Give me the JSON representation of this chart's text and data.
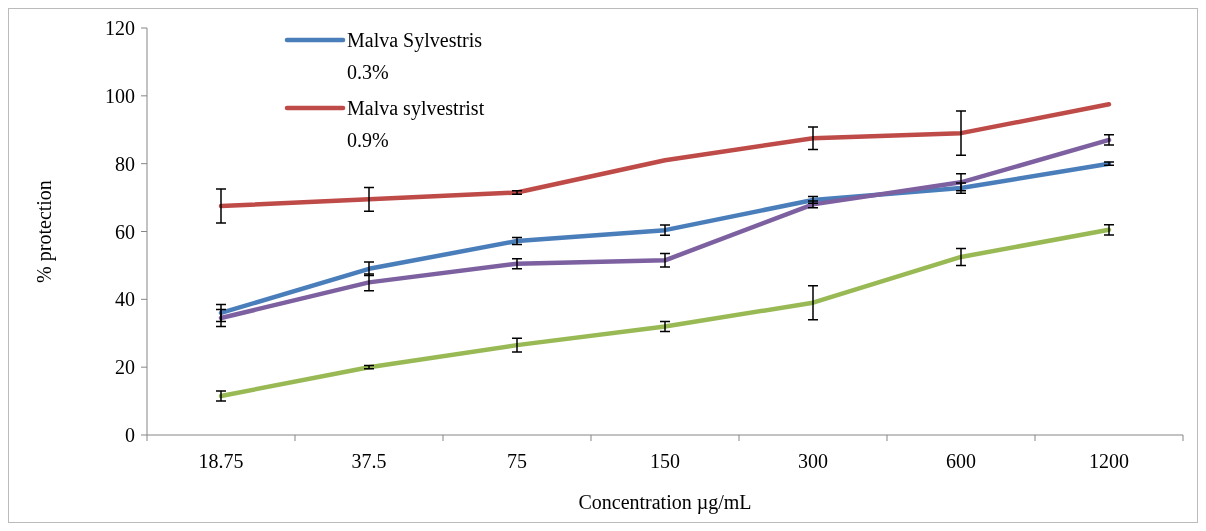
{
  "chart_data": {
    "type": "line",
    "xlabel": "Concentration µg/mL",
    "ylabel": "% protection",
    "categories": [
      "18.75",
      "37.5",
      "75",
      "150",
      "300",
      "600",
      "1200"
    ],
    "series": [
      {
        "name": "Malva Sylvestris 0.3%",
        "color": "#4a7ebb",
        "values": [
          36,
          49,
          57.2,
          60.4,
          69.3,
          72.8,
          80
        ],
        "errors": [
          2.5,
          2,
          1,
          1.5,
          1,
          1.5,
          0.5
        ]
      },
      {
        "name": "Malva sylvestrist 0.9%",
        "color": "#be4b48",
        "values": [
          67.5,
          69.5,
          71.5,
          81,
          87.5,
          89,
          97.5
        ],
        "errors": [
          5,
          3.5,
          0.5,
          null,
          3.3,
          6.5,
          null
        ]
      },
      {
        "color": "#7d60a0",
        "values": [
          34.5,
          45,
          50.5,
          51.5,
          68,
          74.5,
          87
        ],
        "errors": [
          2.5,
          2.5,
          1.5,
          2,
          1,
          2.5,
          1.5
        ]
      },
      {
        "color": "#98b954",
        "values": [
          11.5,
          20,
          26.5,
          32,
          39,
          52.5,
          60.5
        ],
        "errors": [
          1.5,
          0.5,
          2,
          1.5,
          5,
          2.5,
          1.5
        ]
      }
    ],
    "ylim": [
      0,
      120
    ],
    "yticks": [
      0,
      20,
      40,
      60,
      80,
      100,
      120
    ],
    "grid": false,
    "legend": "top left",
    "line_style": "solid"
  }
}
